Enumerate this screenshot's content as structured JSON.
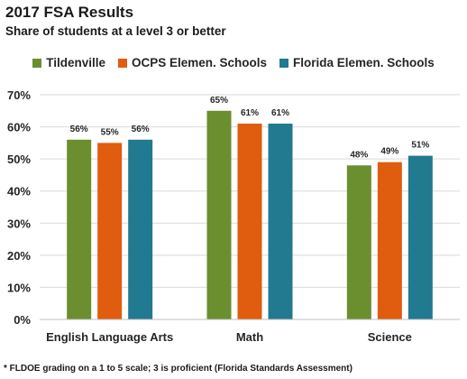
{
  "chart_data": {
    "type": "bar",
    "title": "2017 FSA Results",
    "subtitle": "Share of students at a level 3 or better",
    "categories": [
      "English Language Arts",
      "Math",
      "Science"
    ],
    "series": [
      {
        "name": "Tildenville",
        "color": "#6b8e2f",
        "values": [
          56,
          65,
          48
        ],
        "labels": [
          "56%",
          "65%",
          "48%"
        ]
      },
      {
        "name": "OCPS Elemen. Schools",
        "color": "#e05c0e",
        "values": [
          55,
          61,
          49
        ],
        "labels": [
          "55%",
          "61%",
          "49%"
        ]
      },
      {
        "name": "Florida Elemen. Schools",
        "color": "#217a8f",
        "values": [
          56,
          61,
          51
        ],
        "labels": [
          "56%",
          "61%",
          "51%"
        ]
      }
    ],
    "ylim": [
      0,
      70
    ],
    "yticks": [
      0,
      10,
      20,
      30,
      40,
      50,
      60,
      70
    ],
    "ytick_labels": [
      "0%",
      "10%",
      "20%",
      "30%",
      "40%",
      "50%",
      "60%",
      "70%"
    ],
    "grid": true,
    "legend_position": "top"
  },
  "footnote": "* FLDOE grading on a 1 to 5 scale; 3 is proficient (Florida Standards Assessment)"
}
